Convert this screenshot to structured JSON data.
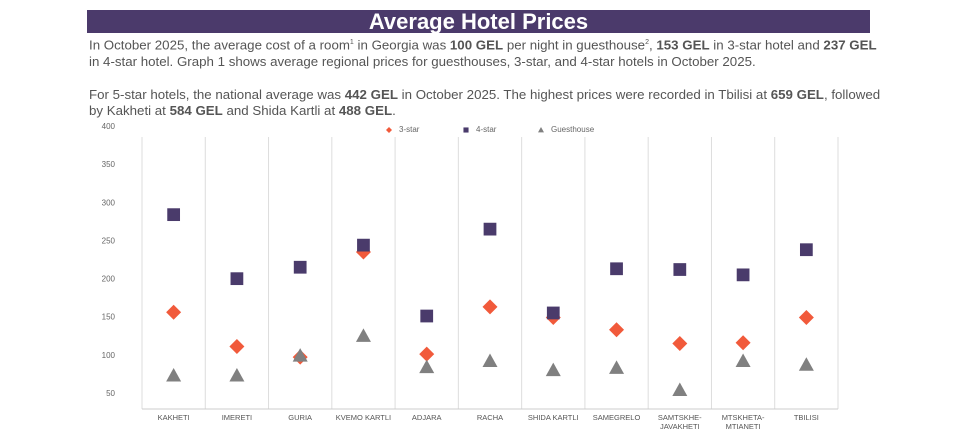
{
  "header": {
    "title": "Average Hotel Prices"
  },
  "paragraphs": [
    [
      "In October 2025, the average cost of a room",
      "1",
      " in Georgia was ",
      "100 GEL",
      " per night in guesthouse",
      "2",
      ", ",
      "153 GEL",
      " in 3-star hotel and ",
      "237 GEL",
      " in 4-star hotel. Graph 1 shows average regional prices for guesthouses, 3-star, and 4-star hotels in October 2025."
    ],
    [
      "For 5-star hotels, the national average was ",
      "442 GEL",
      " in October 2025. The highest prices were recorded in Tbilisi at ",
      "659 GEL",
      ", followed by Kakheti at ",
      "584 GEL",
      " and Shida Kartli at ",
      "488 GEL",
      "."
    ]
  ],
  "chart_data": {
    "type": "scatter",
    "categories": [
      "KAKHETI",
      "IMERETI",
      "GURIA",
      "KVEMO KARTLI",
      "ADJARA",
      "RACHA",
      "SHIDA KARTLI",
      "SAMEGRELO",
      "SAMTSKHE-JAVAKHETI",
      "MTSKHETA-MTIANETI",
      "TBILISI"
    ],
    "series": [
      {
        "name": "3-star",
        "color": "#f15a3b",
        "marker": "diamond",
        "values": [
          157,
          112,
          98,
          236,
          102,
          164,
          150,
          134,
          116,
          117,
          150
        ]
      },
      {
        "name": "4-star",
        "color": "#4a3b6b",
        "marker": "square",
        "values": [
          285,
          201,
          216,
          245,
          152,
          266,
          156,
          214,
          213,
          206,
          239
        ]
      },
      {
        "name": "Guesthouse",
        "color": "#808080",
        "marker": "triangle",
        "values": [
          74,
          74,
          100,
          126,
          85,
          93,
          81,
          84,
          55,
          93,
          88
        ]
      }
    ],
    "ylim": [
      30,
      400
    ],
    "yticks": [
      50,
      100,
      150,
      200,
      250,
      300,
      350,
      400
    ],
    "grid": false,
    "legend": "top"
  }
}
